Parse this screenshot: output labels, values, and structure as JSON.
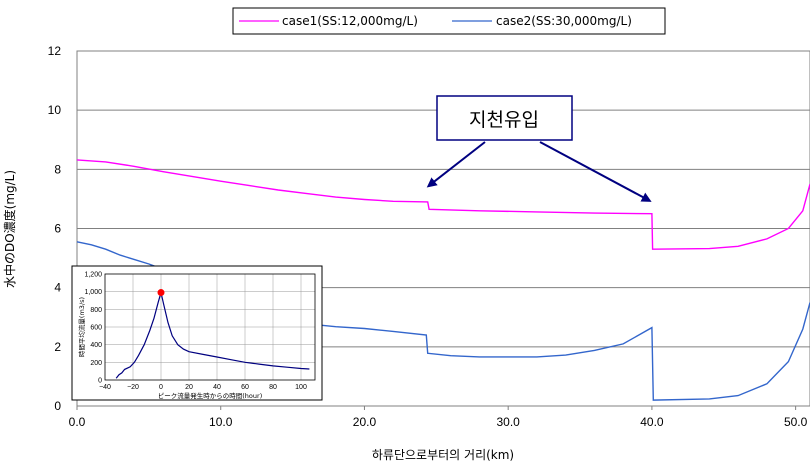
{
  "chart_data": {
    "type": "line",
    "xlabel": "하류단으로부터의 거리(km)",
    "ylabel": "水中のDO濃度(mg/L)",
    "xlim": [
      0,
      51
    ],
    "ylim": [
      0,
      12
    ],
    "x_ticks": [
      "0.0",
      "10.0",
      "20.0",
      "30.0",
      "40.0",
      "50.0"
    ],
    "y_ticks": [
      "0",
      "2",
      "4",
      "6",
      "8",
      "10",
      "12"
    ],
    "grid": "horizontal",
    "legend_position": "top",
    "series": [
      {
        "name": "case1(SS:12,000mg/L)",
        "color": "#ff00ff",
        "points": [
          [
            0,
            8.32
          ],
          [
            2,
            8.25
          ],
          [
            4,
            8.1
          ],
          [
            6,
            7.92
          ],
          [
            8,
            7.76
          ],
          [
            10,
            7.6
          ],
          [
            12,
            7.45
          ],
          [
            14,
            7.3
          ],
          [
            16,
            7.18
          ],
          [
            18,
            7.06
          ],
          [
            20,
            6.98
          ],
          [
            22,
            6.92
          ],
          [
            24.4,
            6.9
          ],
          [
            24.5,
            6.65
          ],
          [
            28,
            6.6
          ],
          [
            32,
            6.56
          ],
          [
            36,
            6.52
          ],
          [
            40,
            6.5
          ],
          [
            40.05,
            5.3
          ],
          [
            44,
            5.32
          ],
          [
            46,
            5.4
          ],
          [
            48,
            5.65
          ],
          [
            49.5,
            6.0
          ],
          [
            50.5,
            6.6
          ],
          [
            51,
            7.5
          ]
        ]
      },
      {
        "name": "case2(SS:30,000mg/L)",
        "color": "#3366cc",
        "points": [
          [
            0,
            5.55
          ],
          [
            1,
            5.45
          ],
          [
            2,
            5.3
          ],
          [
            3,
            5.1
          ],
          [
            4,
            4.95
          ],
          [
            5,
            4.8
          ],
          [
            6,
            4.62
          ],
          [
            8,
            4.25
          ],
          [
            10,
            3.88
          ],
          [
            12,
            3.45
          ],
          [
            14,
            3.05
          ],
          [
            16,
            2.78
          ],
          [
            18,
            2.68
          ],
          [
            20,
            2.62
          ],
          [
            22,
            2.52
          ],
          [
            24.3,
            2.4
          ],
          [
            24.4,
            1.78
          ],
          [
            26,
            1.7
          ],
          [
            28,
            1.66
          ],
          [
            32,
            1.66
          ],
          [
            34,
            1.72
          ],
          [
            36,
            1.88
          ],
          [
            38,
            2.1
          ],
          [
            40,
            2.65
          ],
          [
            40.1,
            0.2
          ],
          [
            44,
            0.24
          ],
          [
            46,
            0.35
          ],
          [
            48,
            0.75
          ],
          [
            49.5,
            1.5
          ],
          [
            50.5,
            2.6
          ],
          [
            51,
            3.5
          ]
        ]
      }
    ],
    "annotation": {
      "text": "지천유입",
      "arrow_targets": [
        [
          24.5,
          7.45
        ],
        [
          39.8,
          6.95
        ]
      ]
    },
    "inset": {
      "type": "line",
      "xlabel": "ピーク流量発生時からの時間(hour)",
      "ylabel": "時間平均流量(m3/s)",
      "xlim": [
        -40,
        110
      ],
      "ylim": [
        0,
        1200
      ],
      "x_ticks": [
        "−40",
        "−20",
        "0",
        "20",
        "40",
        "60",
        "80",
        "100"
      ],
      "y_ticks": [
        "0",
        "200",
        "400",
        "600",
        "800",
        "1,000",
        "1,200"
      ],
      "color": "#000080",
      "peak_marker": {
        "x": 0,
        "y": 990,
        "color": "#ff0000"
      },
      "points": [
        [
          -32,
          20
        ],
        [
          -30,
          60
        ],
        [
          -28,
          80
        ],
        [
          -26,
          120
        ],
        [
          -22,
          150
        ],
        [
          -19,
          200
        ],
        [
          -16,
          280
        ],
        [
          -12,
          400
        ],
        [
          -8,
          560
        ],
        [
          -5,
          700
        ],
        [
          -2,
          880
        ],
        [
          0,
          990
        ],
        [
          2,
          850
        ],
        [
          5,
          650
        ],
        [
          8,
          500
        ],
        [
          12,
          400
        ],
        [
          16,
          350
        ],
        [
          20,
          320
        ],
        [
          30,
          290
        ],
        [
          40,
          260
        ],
        [
          50,
          230
        ],
        [
          60,
          200
        ],
        [
          70,
          180
        ],
        [
          80,
          160
        ],
        [
          90,
          145
        ],
        [
          100,
          130
        ],
        [
          106,
          125
        ]
      ]
    }
  }
}
